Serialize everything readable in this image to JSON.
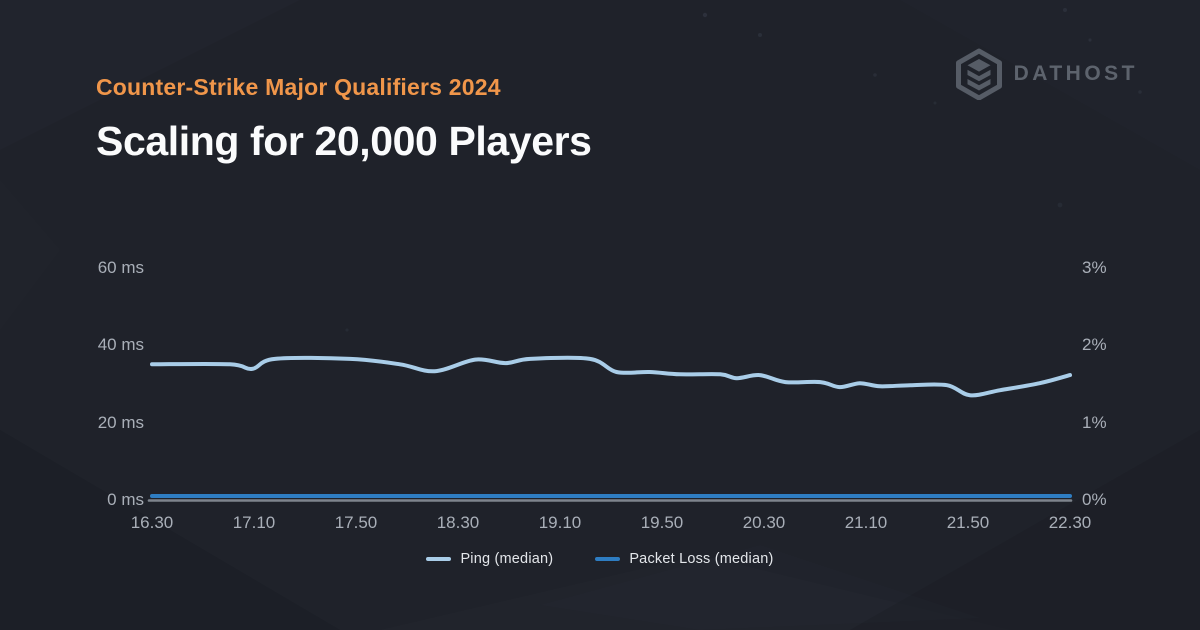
{
  "header": {
    "eyebrow": "Counter-Strike Major Qualifiers 2024",
    "title": "Scaling for 20,000 Players",
    "eyebrow_color": "#f0964a"
  },
  "brand": {
    "name": "DATHOST",
    "icon": "dathost-stacked-layers-hexagon-icon",
    "color": "#5d636d"
  },
  "chart_data": {
    "type": "line",
    "title": "Scaling for 20,000 Players",
    "x_tick_labels": [
      "16.30",
      "17.10",
      "17.50",
      "18.30",
      "19.10",
      "19.50",
      "20.30",
      "21.10",
      "21.50",
      "22.30"
    ],
    "left_axis": {
      "unit": "ms",
      "ticks": [
        "0 ms",
        "20 ms",
        "40 ms",
        "60 ms"
      ],
      "values": [
        0,
        20,
        40,
        60
      ],
      "range": [
        0,
        60
      ]
    },
    "right_axis": {
      "unit": "%",
      "ticks": [
        "0%",
        "1%",
        "2%",
        "3%"
      ],
      "values": [
        0,
        1,
        2,
        3
      ],
      "range": [
        0,
        3
      ]
    },
    "grid": "off",
    "legend_position": "bottom-center",
    "axis_line_color": "#7e848d",
    "label_color": "#a9afb8",
    "series": [
      {
        "name": "Ping (median)",
        "axis": "left",
        "color": "#a9cde8",
        "points": [
          [
            0.0,
            35.1
          ],
          [
            0.085,
            35.1
          ],
          [
            0.109,
            33.9
          ],
          [
            0.134,
            36.5
          ],
          [
            0.216,
            36.5
          ],
          [
            0.27,
            35.1
          ],
          [
            0.308,
            33.3
          ],
          [
            0.352,
            36.3
          ],
          [
            0.385,
            35.4
          ],
          [
            0.412,
            36.5
          ],
          [
            0.477,
            36.5
          ],
          [
            0.506,
            33.1
          ],
          [
            0.542,
            33.1
          ],
          [
            0.575,
            32.5
          ],
          [
            0.619,
            32.5
          ],
          [
            0.637,
            31.5
          ],
          [
            0.662,
            32.3
          ],
          [
            0.69,
            30.5
          ],
          [
            0.728,
            30.5
          ],
          [
            0.749,
            29.2
          ],
          [
            0.771,
            30.2
          ],
          [
            0.793,
            29.4
          ],
          [
            0.826,
            29.7
          ],
          [
            0.866,
            29.7
          ],
          [
            0.891,
            27.1
          ],
          [
            0.924,
            28.4
          ],
          [
            0.967,
            30.2
          ],
          [
            1.0,
            32.3
          ]
        ]
      },
      {
        "name": "Packet Loss (median)",
        "axis": "right",
        "color": "#2e7dc2",
        "points": [
          [
            0.0,
            0
          ],
          [
            0.25,
            0
          ],
          [
            0.5,
            0
          ],
          [
            0.75,
            0
          ],
          [
            1.0,
            0
          ]
        ]
      }
    ]
  }
}
